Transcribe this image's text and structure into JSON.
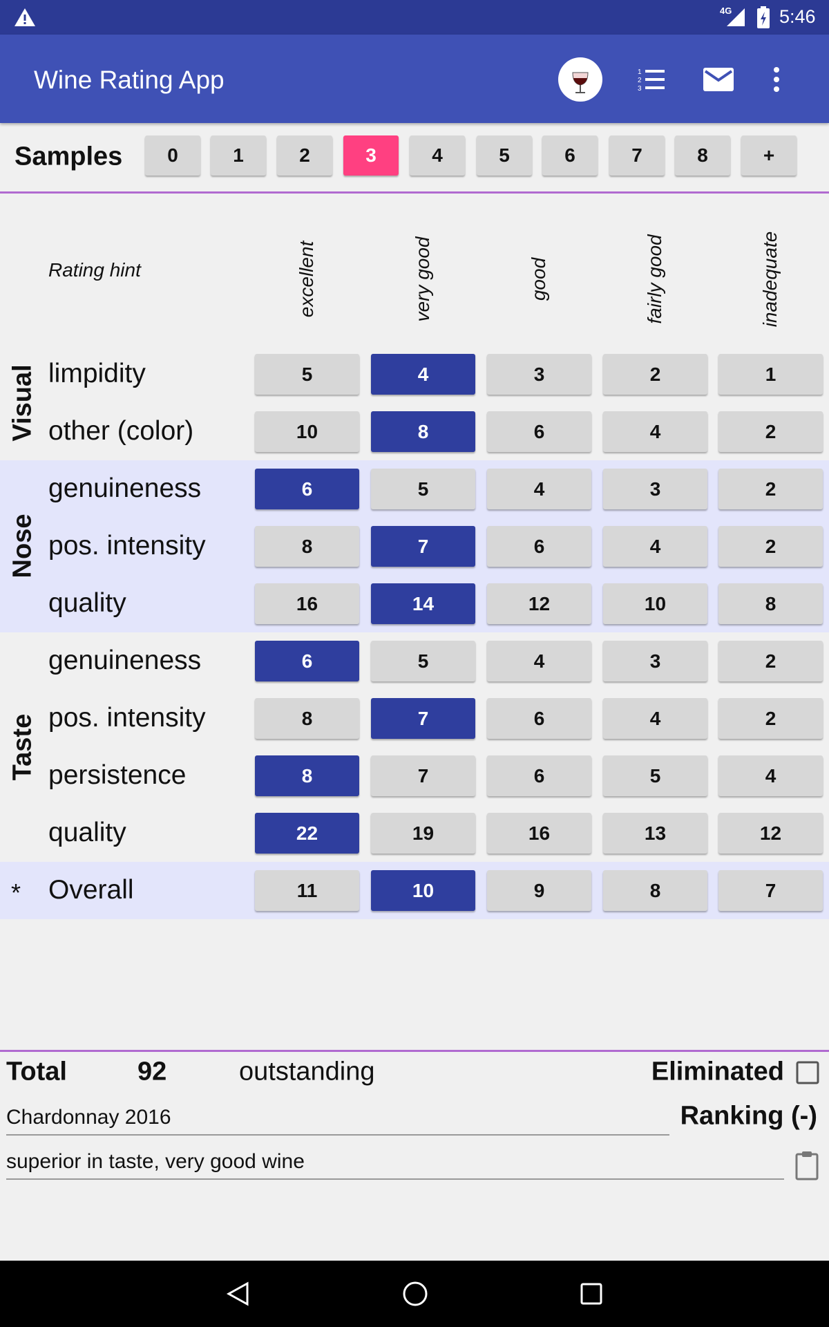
{
  "status_bar": {
    "network": "4G",
    "time": "5:46"
  },
  "app_bar": {
    "title": "Wine Rating App"
  },
  "samples": {
    "label": "Samples",
    "buttons": [
      "0",
      "1",
      "2",
      "3",
      "4",
      "5",
      "6",
      "7",
      "8",
      "+"
    ],
    "selected": 3
  },
  "rating_hint": {
    "label": "Rating hint",
    "columns": [
      "excellent",
      "very good",
      "good",
      "fairly good",
      "inadequate"
    ]
  },
  "groups": [
    {
      "label": "Visual",
      "shaded": false,
      "rows": [
        {
          "label": "limpidity",
          "scores": [
            5,
            4,
            3,
            2,
            1
          ],
          "selected": 1
        },
        {
          "label": "other (color)",
          "scores": [
            10,
            8,
            6,
            4,
            2
          ],
          "selected": 1
        }
      ]
    },
    {
      "label": "Nose",
      "shaded": true,
      "rows": [
        {
          "label": "genuineness",
          "scores": [
            6,
            5,
            4,
            3,
            2
          ],
          "selected": 0
        },
        {
          "label": "pos. intensity",
          "scores": [
            8,
            7,
            6,
            4,
            2
          ],
          "selected": 1
        },
        {
          "label": "quality",
          "scores": [
            16,
            14,
            12,
            10,
            8
          ],
          "selected": 1
        }
      ]
    },
    {
      "label": "Taste",
      "shaded": false,
      "rows": [
        {
          "label": "genuineness",
          "scores": [
            6,
            5,
            4,
            3,
            2
          ],
          "selected": 0
        },
        {
          "label": "pos. intensity",
          "scores": [
            8,
            7,
            6,
            4,
            2
          ],
          "selected": 1
        },
        {
          "label": "persistence",
          "scores": [
            8,
            7,
            6,
            5,
            4
          ],
          "selected": 0
        },
        {
          "label": "quality",
          "scores": [
            22,
            19,
            16,
            13,
            12
          ],
          "selected": 0
        }
      ]
    }
  ],
  "overall": {
    "marker": "*",
    "label": "Overall",
    "scores": [
      11,
      10,
      9,
      8,
      7
    ],
    "selected": 1,
    "shaded": true
  },
  "summary": {
    "total_label": "Total",
    "total": 92,
    "verdict": "outstanding",
    "eliminated_label": "Eliminated",
    "wine_name": "Chardonnay 2016",
    "ranking": "Ranking (-)",
    "note": "superior in taste, very good wine"
  }
}
